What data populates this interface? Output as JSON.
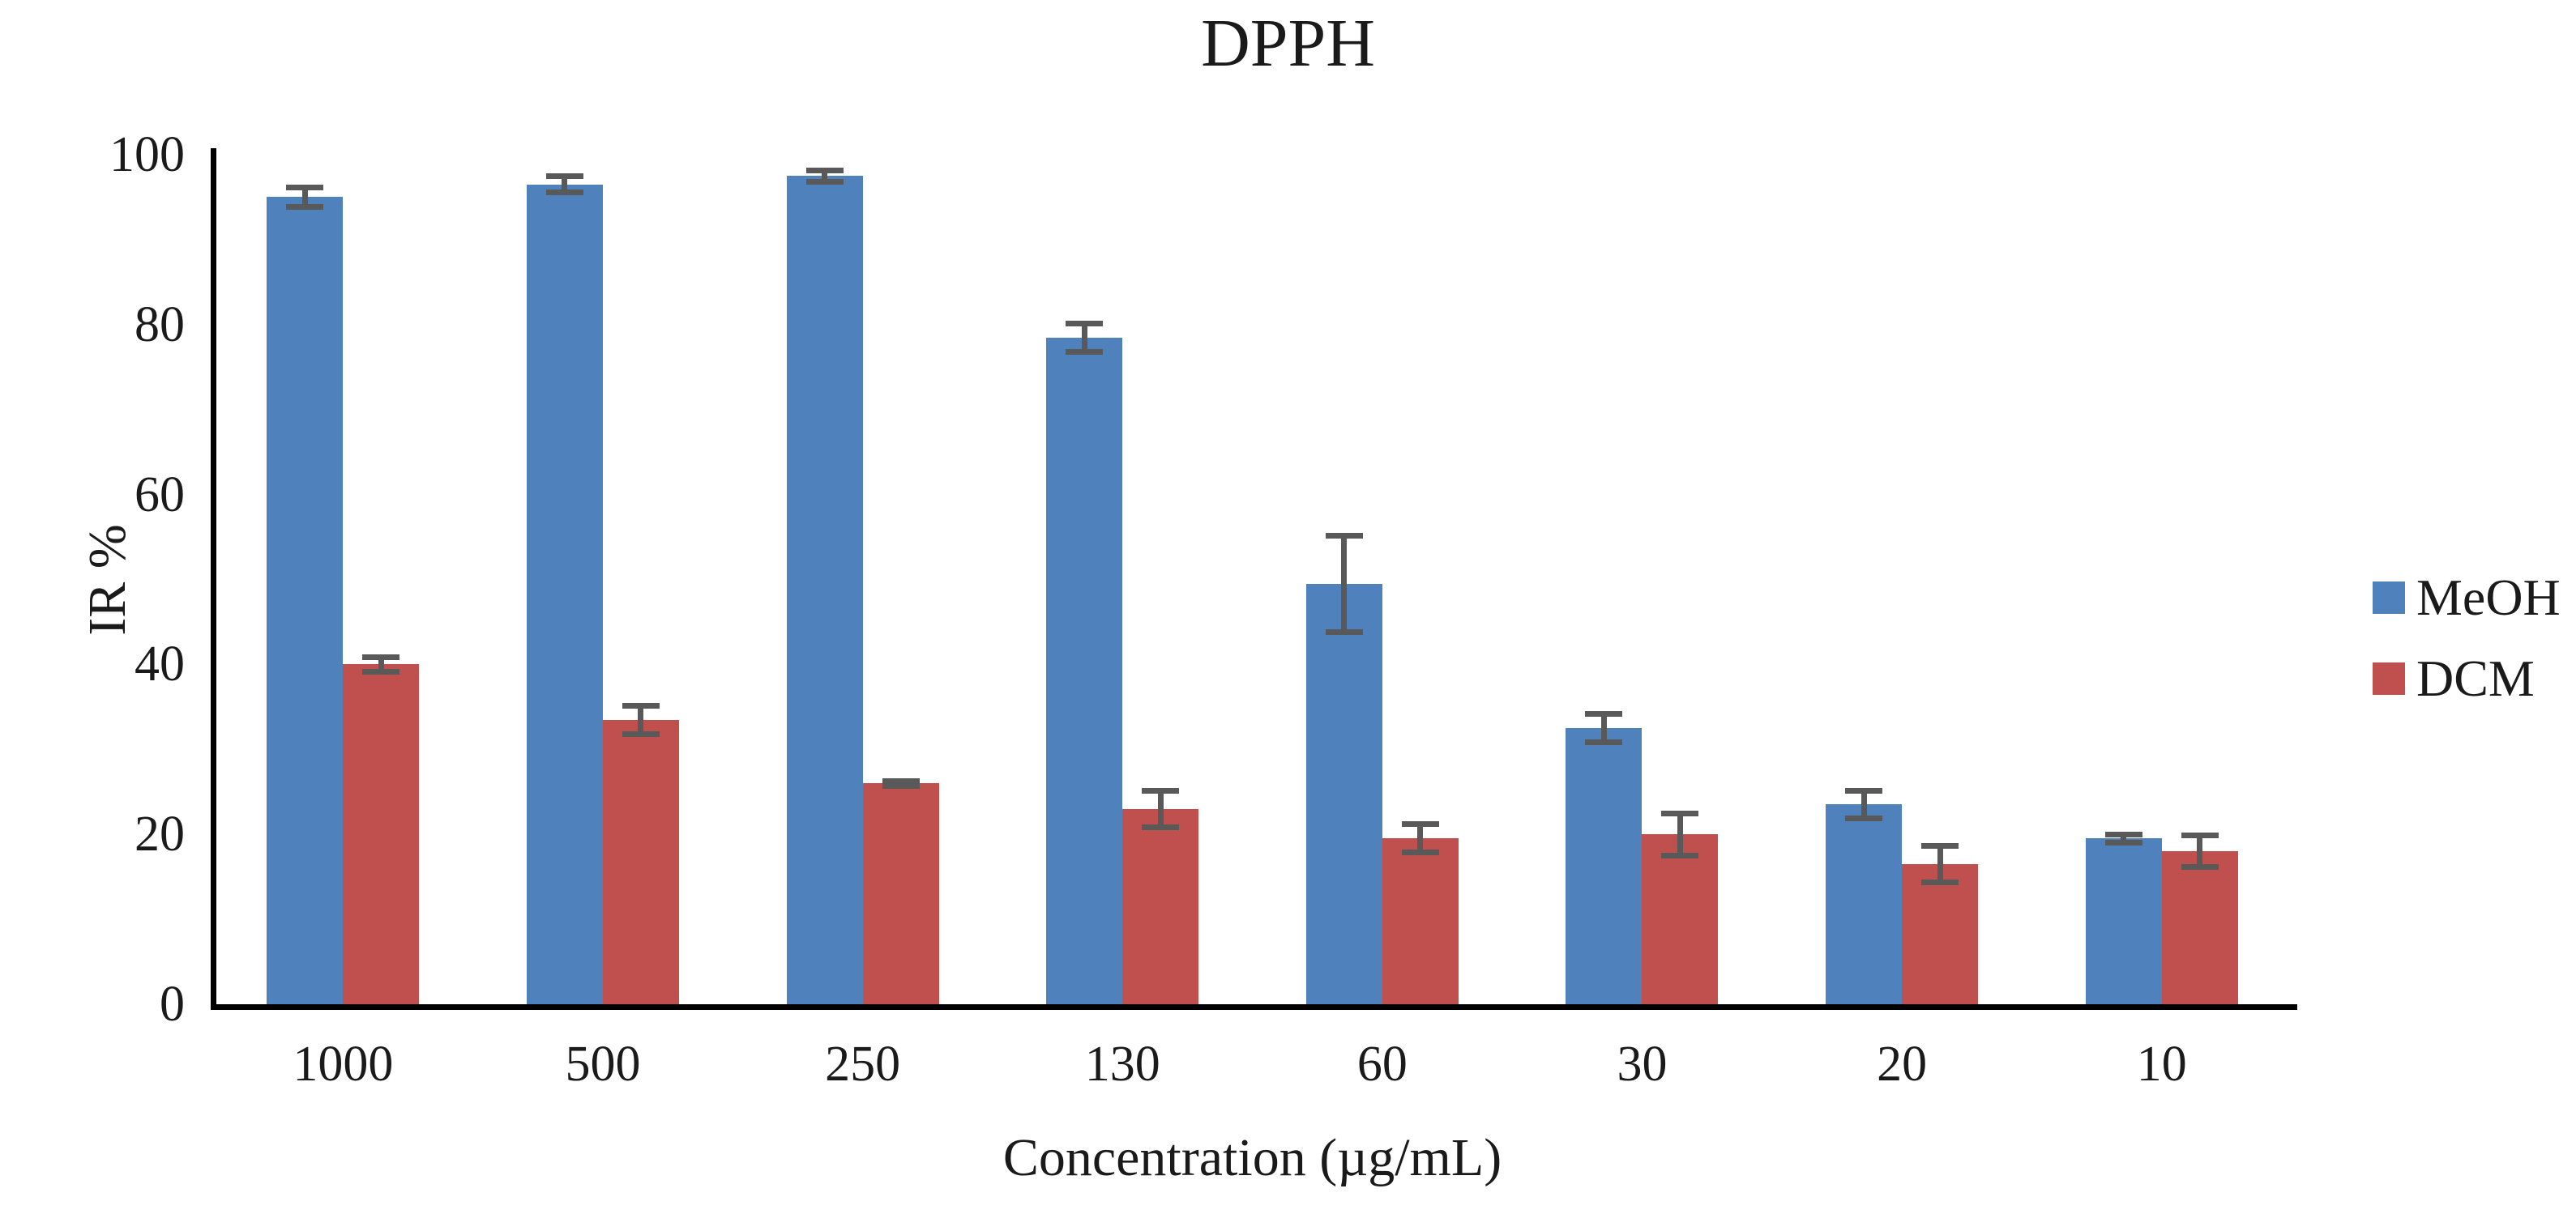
{
  "chart_data": {
    "type": "bar",
    "title": "DPPH",
    "xlabel": "Concentration (µg/mL)",
    "ylabel": "IR %",
    "ylim": [
      0,
      100
    ],
    "y_ticks": [
      0,
      20,
      40,
      60,
      80,
      100
    ],
    "grid": false,
    "legend_position": "right",
    "categories": [
      "1000",
      "500",
      "250",
      "130",
      "60",
      "30",
      "20",
      "10"
    ],
    "series": [
      {
        "name": "MeOH",
        "color": "#4F81BD",
        "values": [
          95,
          96.5,
          97.5,
          78.5,
          49.5,
          32.5,
          23.5,
          19.5
        ],
        "errors": [
          1.5,
          1.3,
          1.0,
          2.0,
          6.0,
          2.0,
          2.0,
          0.8
        ]
      },
      {
        "name": "DCM",
        "color": "#C0504D",
        "values": [
          40,
          33.5,
          26,
          23,
          19.5,
          20,
          16.5,
          18
        ],
        "errors": [
          1.2,
          2.0,
          0.6,
          2.5,
          2.0,
          2.8,
          2.5,
          2.2
        ]
      }
    ],
    "error_bar_color": "#595959"
  }
}
